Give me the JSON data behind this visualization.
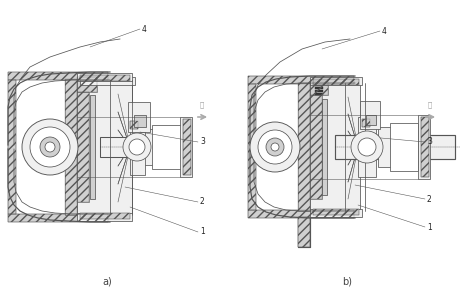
{
  "fig_width": 4.74,
  "fig_height": 2.94,
  "dpi": 100,
  "bg_color": "#ffffff",
  "label_a": "a)",
  "label_b": "b)",
  "label_color": "#444444",
  "lc": "#555555",
  "lc_dark": "#333333",
  "lw": 0.55,
  "hatch_fc": "#d0d0d0",
  "light_fc": "#f0f0f0",
  "dark_fc": "#888888",
  "arrow_color": "#aaaaaa",
  "arrow_text_a": "前",
  "arrow_text_b": "后"
}
